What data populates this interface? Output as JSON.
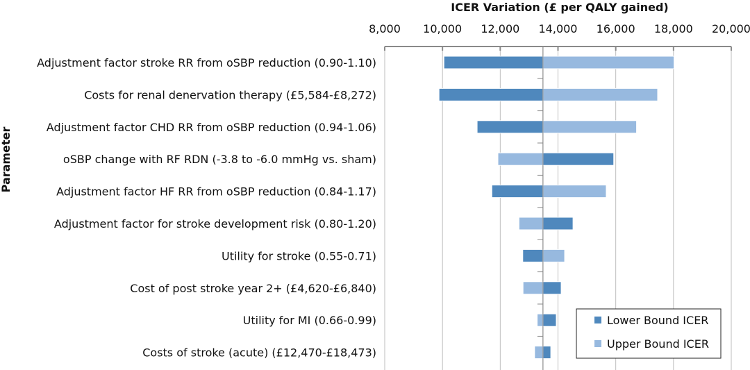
{
  "chart_data": {
    "type": "bar",
    "orientation": "horizontal",
    "subtype": "tornado",
    "title": "ICER Variation (£ per QALY gained)",
    "xlabel": "ICER Variation (£ per QALY gained)",
    "ylabel": "Parameter",
    "xlim": [
      8000,
      20000
    ],
    "xticks": [
      8000,
      10000,
      12000,
      14000,
      16000,
      18000,
      20000
    ],
    "xtick_labels": [
      "8,000",
      "10,000",
      "12,000",
      "14,000",
      "16,000",
      "18,000",
      "20,000"
    ],
    "axis_position": "top",
    "grid": true,
    "base_value": 13480,
    "legend_position": "bottom-right",
    "categories": [
      "Adjustment factor stroke RR from oSBP reduction (0.90-1.10)",
      "Costs for renal denervation therapy (£5,584-£8,272)",
      "Adjustment factor CHD RR from oSBP reduction (0.94-1.06)",
      "oSBP change with RF RDN (-3.8 to -6.0 mmHg vs. sham)",
      "Adjustment factor HF RR from oSBP reduction (0.84-1.17)",
      "Adjustment factor for stroke development risk (0.80-1.20)",
      "Utility for stroke (0.55-0.71)",
      "Cost of post stroke year 2+ (£4,620-£6,840)",
      "Utility for MI (0.66-0.99)",
      "Costs of stroke (acute)  (£12,470-£18,473)"
    ],
    "series": [
      {
        "name": "Lower Bound ICER",
        "color": "#4f88bd",
        "values": [
          10050,
          9880,
          11200,
          15930,
          11710,
          14520,
          12780,
          14110,
          13940,
          13750
        ]
      },
      {
        "name": "Upper Bound ICER",
        "color": "#97b9df",
        "values": [
          18020,
          17450,
          16720,
          11920,
          15670,
          12650,
          14230,
          12790,
          13280,
          13190
        ]
      }
    ]
  }
}
